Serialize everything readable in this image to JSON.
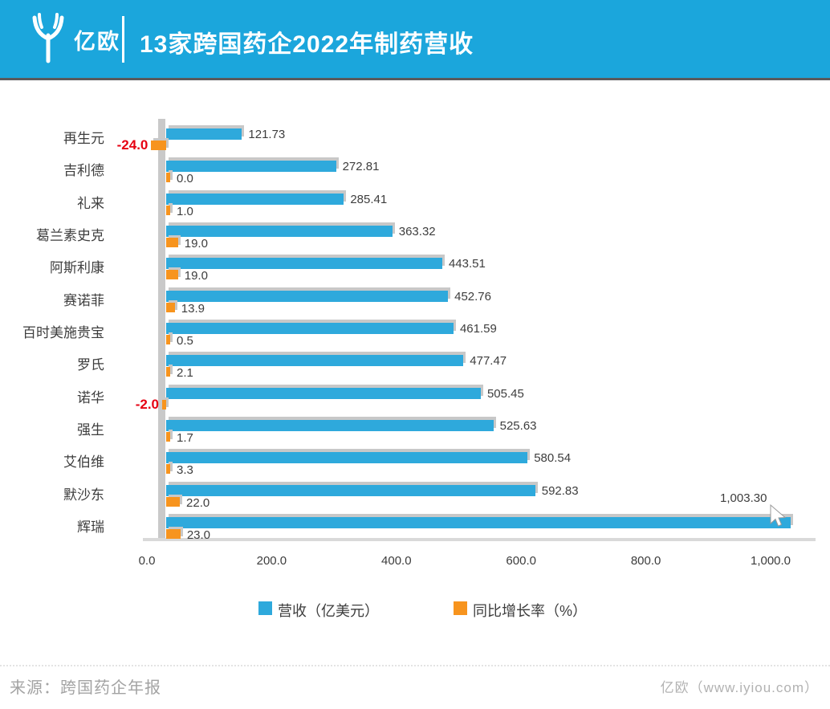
{
  "header": {
    "logo_text": "亿欧",
    "title": "13家跨国药企2022年制药营收"
  },
  "colors": {
    "header_blue": "#1BA6DC",
    "bar_blue": "#2EA9DC",
    "bar_orange": "#F7941E",
    "negative_red": "#E60012",
    "shadow_gray": "#c8c8c8"
  },
  "chart_data": {
    "type": "bar",
    "orientation": "horizontal",
    "title": "13家跨国药企2022年制药营收",
    "categories": [
      "再生元",
      "吉利德",
      "礼来",
      "葛兰素史克",
      "阿斯利康",
      "赛诺菲",
      "百时美施贵宝",
      "罗氏",
      "诺华",
      "强生",
      "艾伯维",
      "默沙东",
      "辉瑞"
    ],
    "series": [
      {
        "name": "营收（亿美元）",
        "color": "#2EA9DC",
        "values": [
          121.73,
          272.81,
          285.41,
          363.32,
          443.51,
          452.76,
          461.59,
          477.47,
          505.45,
          525.63,
          580.54,
          592.83,
          1003.3
        ],
        "labels": [
          "121.73",
          "272.81",
          "285.41",
          "363.32",
          "443.51",
          "452.76",
          "461.59",
          "477.47",
          "505.45",
          "525.63",
          "580.54",
          "592.83",
          "1,003.30"
        ]
      },
      {
        "name": "同比增长率（%）",
        "color": "#F7941E",
        "values": [
          -24.0,
          0.0,
          1.0,
          19.0,
          19.0,
          13.9,
          0.5,
          2.1,
          -2.0,
          1.7,
          3.3,
          22.0,
          23.0
        ],
        "labels": [
          "-24.0",
          "0.0",
          "1.0",
          "19.0",
          "19.0",
          "13.9",
          "0.5",
          "2.1",
          "-2.0",
          "1.7",
          "3.3",
          "22.0",
          "23.0"
        ]
      }
    ],
    "x_ticks": [
      "0.0",
      "200.0",
      "400.0",
      "600.0",
      "800.0",
      "1,000.0"
    ],
    "xlim": [
      0,
      1000
    ],
    "grid": false,
    "legend_position": "bottom"
  },
  "legend": {
    "items": [
      {
        "label": "营收（亿美元）",
        "color": "#2EA9DC"
      },
      {
        "label": "同比增长率（%）",
        "color": "#F7941E"
      }
    ]
  },
  "footer": {
    "source": "来源：跨国药企年报",
    "site": "亿欧（www.iyiou.com）"
  }
}
